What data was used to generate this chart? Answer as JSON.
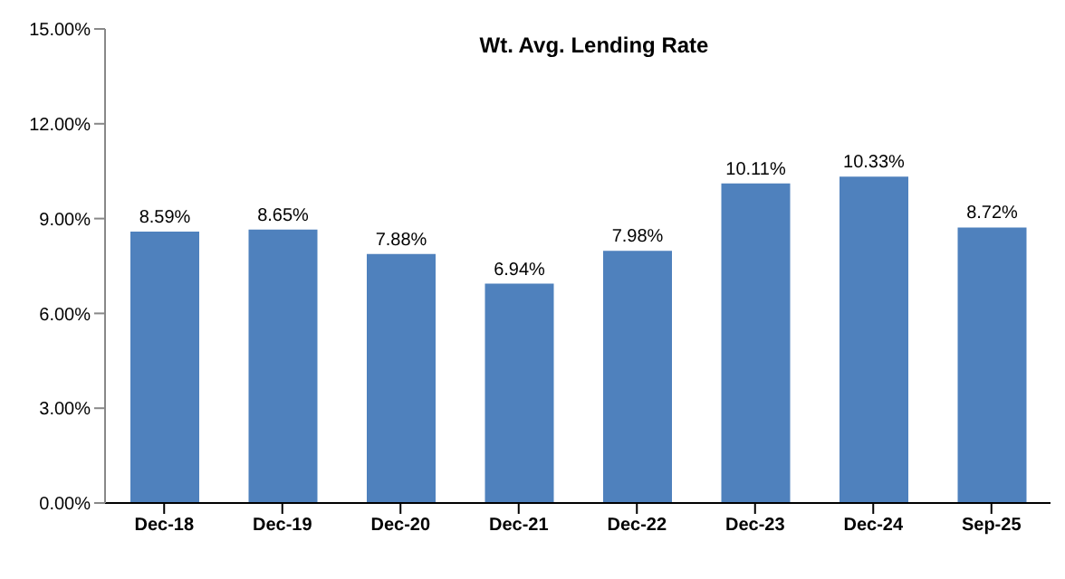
{
  "chart_data": {
    "type": "bar",
    "title": "Wt. Avg. Lending Rate",
    "categories": [
      "Dec-18",
      "Dec-19",
      "Dec-20",
      "Dec-21",
      "Dec-22",
      "Dec-23",
      "Dec-24",
      "Sep-25"
    ],
    "values": [
      8.59,
      8.65,
      7.88,
      6.94,
      7.98,
      10.11,
      10.33,
      8.72
    ],
    "value_labels": [
      "8.59%",
      "8.65%",
      "7.88%",
      "6.94%",
      "7.98%",
      "10.11%",
      "10.33%",
      "8.72%"
    ],
    "color": "#4f81bd",
    "ylim": [
      0,
      15
    ],
    "yticks": [
      {
        "value": 0,
        "label": "0.00%"
      },
      {
        "value": 3,
        "label": "3.00%"
      },
      {
        "value": 6,
        "label": "6.00%"
      },
      {
        "value": 9,
        "label": "9.00%"
      },
      {
        "value": 12,
        "label": "12.00%"
      },
      {
        "value": 15,
        "label": "15.00%"
      }
    ],
    "grid": false
  }
}
